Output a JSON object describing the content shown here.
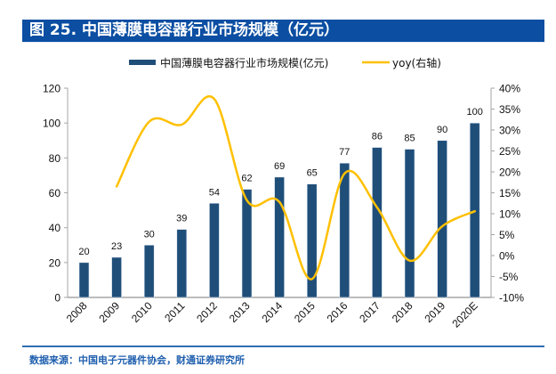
{
  "header": {
    "title": "图 25. 中国薄膜电容器行业市场规模（亿元）"
  },
  "footer": {
    "source": "数据来源：中国电子元器件协会，财通证券研究所"
  },
  "colors": {
    "header_bg": "#0b4ea2",
    "bar": "#1f4e79",
    "line": "#ffc000",
    "axis": "#a6a6a6",
    "footer_text": "#1f5fae"
  },
  "chart_data": {
    "type": "bar",
    "title": "中国薄膜电容器行业市场规模（亿元）",
    "categories": [
      "2008",
      "2009",
      "2010",
      "2011",
      "2012",
      "2013",
      "2014",
      "2015",
      "2016",
      "2017",
      "2018",
      "2019",
      "2020E"
    ],
    "series": [
      {
        "name": "中国薄膜电容器行业市场规模(亿元)",
        "type": "bar",
        "axis": "left",
        "values": [
          20,
          23,
          30,
          39,
          54,
          62,
          69,
          65,
          77,
          86,
          85,
          90,
          100
        ],
        "data_labels": [
          "20",
          "23",
          "30",
          "39",
          "54",
          "62",
          "69",
          "65",
          "77",
          "86",
          "85",
          "90",
          "100"
        ]
      },
      {
        "name": "yoy(右轴)",
        "type": "line",
        "axis": "right",
        "smooth": true,
        "values": [
          null,
          16.5,
          32.0,
          31.3,
          37.4,
          13.2,
          12.8,
          -5.6,
          19.6,
          11.5,
          -1.2,
          7.0,
          10.6
        ],
        "unit": "%"
      }
    ],
    "left_axis": {
      "ylim": [
        0,
        120
      ],
      "ticks": [
        0,
        20,
        40,
        60,
        80,
        100,
        120
      ],
      "tick_labels": [
        "0",
        "20",
        "40",
        "60",
        "80",
        "100",
        "120"
      ]
    },
    "right_axis": {
      "ylim": [
        -10,
        40
      ],
      "ticks": [
        -10,
        -5,
        0,
        5,
        10,
        15,
        20,
        25,
        30,
        35,
        40
      ],
      "tick_labels": [
        "-10%",
        "-5%",
        "0%",
        "5%",
        "10%",
        "15%",
        "20%",
        "25%",
        "30%",
        "35%",
        "40%"
      ]
    },
    "xlabel": "",
    "ylabel": "",
    "grid": false,
    "legend": {
      "position": "top-center",
      "entries": [
        "中国薄膜电容器行业市场规模(亿元)",
        "yoy(右轴)"
      ]
    }
  }
}
